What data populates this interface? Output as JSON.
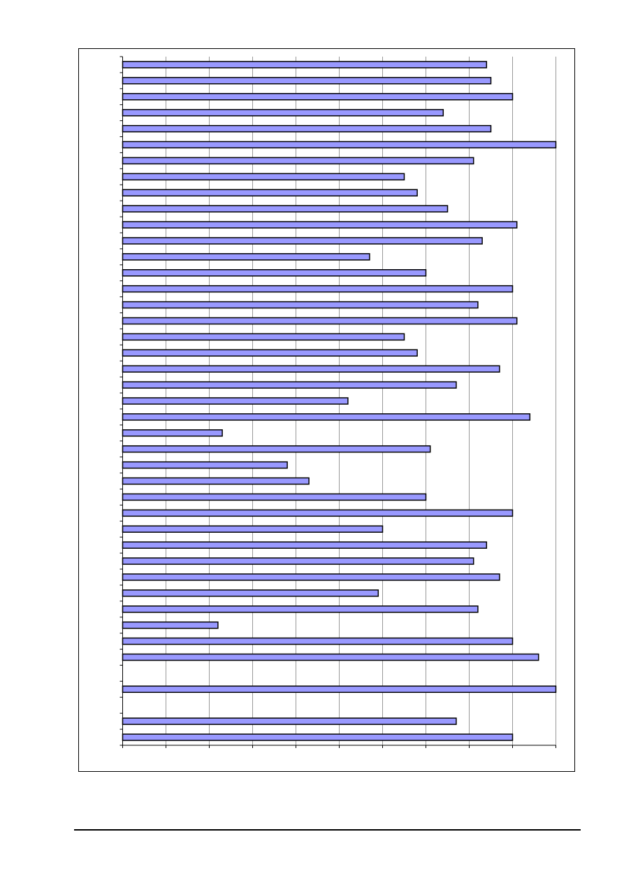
{
  "colors": {
    "bar_fill": "#9999ff",
    "bar_stroke": "#000000",
    "gridline": "#999999",
    "axis": "#000000",
    "frame": "#000000",
    "background": "#ffffff"
  },
  "chart_data": {
    "type": "bar",
    "orientation": "horizontal",
    "title": "",
    "xlabel": "",
    "ylabel": "",
    "xlim": [
      0,
      10
    ],
    "x_major_ticks": [
      0,
      1,
      2,
      3,
      4,
      5,
      6,
      7,
      8,
      9,
      10
    ],
    "grid": true,
    "legend": "none",
    "category_count": 43,
    "tick_labels_visible": false,
    "values": [
      8.4,
      8.5,
      9.0,
      7.4,
      8.5,
      10.0,
      8.1,
      6.5,
      6.8,
      7.5,
      9.1,
      8.3,
      5.7,
      7.0,
      9.0,
      8.2,
      9.1,
      6.5,
      6.8,
      8.7,
      7.7,
      5.2,
      9.4,
      2.3,
      7.1,
      3.8,
      4.3,
      7.0,
      9.0,
      6.0,
      8.4,
      8.1,
      8.7,
      5.9,
      8.2,
      2.2,
      9.0,
      9.6,
      null,
      10.0,
      null,
      7.7,
      9.0
    ]
  }
}
